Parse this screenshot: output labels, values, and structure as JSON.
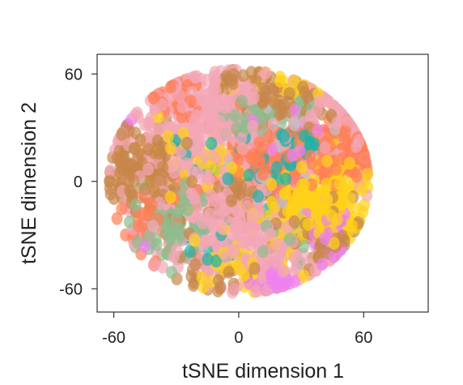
{
  "chart_data": {
    "type": "scatter",
    "title": "",
    "xlabel": "tSNE dimension 1",
    "ylabel": "tSNE dimension 2",
    "xlim": [
      -68,
      91
    ],
    "ylim": [
      -73,
      71
    ],
    "x_ticks": [
      -60,
      0,
      60
    ],
    "y_ticks": [
      -60,
      0,
      60
    ],
    "x_tick_labels": [
      "-60",
      "0",
      "60"
    ],
    "y_tick_labels": [
      "-60",
      "0",
      "60"
    ],
    "grid": false,
    "legend": "none",
    "point_opacity": 0.7,
    "series": [
      {
        "color": "#F4A6B6",
        "clusters": [
          {
            "cx": -10,
            "cy": 35,
            "sx": 14,
            "sy": 14,
            "n": 220
          },
          {
            "cx": -28,
            "cy": 5,
            "sx": 18,
            "sy": 26,
            "n": 200
          },
          {
            "cx": 10,
            "cy": -40,
            "sx": 20,
            "sy": 12,
            "n": 170
          },
          {
            "cx": 45,
            "cy": 30,
            "sx": 12,
            "sy": 16,
            "n": 110
          },
          {
            "cx": -5,
            "cy": -15,
            "sx": 15,
            "sy": 12,
            "n": 120
          }
        ]
      },
      {
        "color": "#C8884A",
        "clusters": [
          {
            "cx": -42,
            "cy": 8,
            "sx": 9,
            "sy": 13,
            "n": 160
          },
          {
            "cx": 2,
            "cy": -8,
            "sx": 9,
            "sy": 8,
            "n": 60
          },
          {
            "cx": 18,
            "cy": 45,
            "sx": 11,
            "sy": 7,
            "n": 70
          },
          {
            "cx": 40,
            "cy": -30,
            "sx": 10,
            "sy": 10,
            "n": 60
          },
          {
            "cx": 0,
            "cy": 58,
            "sx": 8,
            "sy": 5,
            "n": 25
          },
          {
            "cx": -10,
            "cy": -52,
            "sx": 12,
            "sy": 6,
            "n": 30
          }
        ]
      },
      {
        "color": "#FF7F55",
        "clusters": [
          {
            "cx": 50,
            "cy": 20,
            "sx": 8,
            "sy": 8,
            "n": 100
          },
          {
            "cx": 8,
            "cy": 15,
            "sx": 10,
            "sy": 12,
            "n": 90
          },
          {
            "cx": 30,
            "cy": 10,
            "sx": 10,
            "sy": 12,
            "n": 60
          },
          {
            "cx": -30,
            "cy": 45,
            "sx": 8,
            "sy": 8,
            "n": 30
          },
          {
            "cx": -42,
            "cy": -20,
            "sx": 8,
            "sy": 14,
            "n": 40
          }
        ]
      },
      {
        "color": "#FFD21A",
        "clusters": [
          {
            "cx": 35,
            "cy": -12,
            "sx": 13,
            "sy": 10,
            "n": 230
          },
          {
            "cx": -8,
            "cy": 8,
            "sx": 6,
            "sy": 6,
            "n": 25
          },
          {
            "cx": 0,
            "cy": -45,
            "sx": 10,
            "sy": 8,
            "n": 45
          },
          {
            "cx": -35,
            "cy": 10,
            "sx": 10,
            "sy": 14,
            "n": 30
          },
          {
            "cx": 48,
            "cy": 5,
            "sx": 8,
            "sy": 10,
            "n": 40
          },
          {
            "cx": 20,
            "cy": 55,
            "sx": 15,
            "sy": 5,
            "n": 25
          }
        ]
      },
      {
        "color": "#8FBC8F",
        "clusters": [
          {
            "cx": -32,
            "cy": -24,
            "sx": 8,
            "sy": 10,
            "n": 90
          },
          {
            "cx": 5,
            "cy": 35,
            "sx": 6,
            "sy": 5,
            "n": 55
          },
          {
            "cx": 30,
            "cy": 40,
            "sx": 6,
            "sy": 6,
            "n": 20
          },
          {
            "cx": 25,
            "cy": -30,
            "sx": 8,
            "sy": 8,
            "n": 25
          }
        ]
      },
      {
        "color": "#20B2AA",
        "clusters": [
          {
            "cx": 30,
            "cy": 22,
            "sx": 6,
            "sy": 5,
            "n": 55
          },
          {
            "cx": 15,
            "cy": 0,
            "sx": 8,
            "sy": 8,
            "n": 30
          },
          {
            "cx": -20,
            "cy": 15,
            "sx": 10,
            "sy": 10,
            "n": 20
          },
          {
            "cx": -10,
            "cy": -38,
            "sx": 8,
            "sy": 6,
            "n": 15
          }
        ]
      },
      {
        "color": "#EE82EE",
        "clusters": [
          {
            "cx": 17,
            "cy": -55,
            "sx": 5,
            "sy": 3,
            "n": 45
          },
          {
            "cx": 42,
            "cy": -25,
            "sx": 5,
            "sy": 6,
            "n": 30
          },
          {
            "cx": 45,
            "cy": -40,
            "sx": 4,
            "sy": 4,
            "n": 12
          },
          {
            "cx": -55,
            "cy": 35,
            "sx": 3,
            "sy": 3,
            "n": 4
          },
          {
            "cx": -45,
            "cy": -33,
            "sx": 3,
            "sy": 3,
            "n": 4
          },
          {
            "cx": 25,
            "cy": 20,
            "sx": 10,
            "sy": 8,
            "n": 20
          }
        ]
      },
      {
        "color": "#C0C0C8",
        "clusters": [
          {
            "cx": 20,
            "cy": 10,
            "sx": 20,
            "sy": 20,
            "n": 30
          }
        ]
      }
    ]
  }
}
